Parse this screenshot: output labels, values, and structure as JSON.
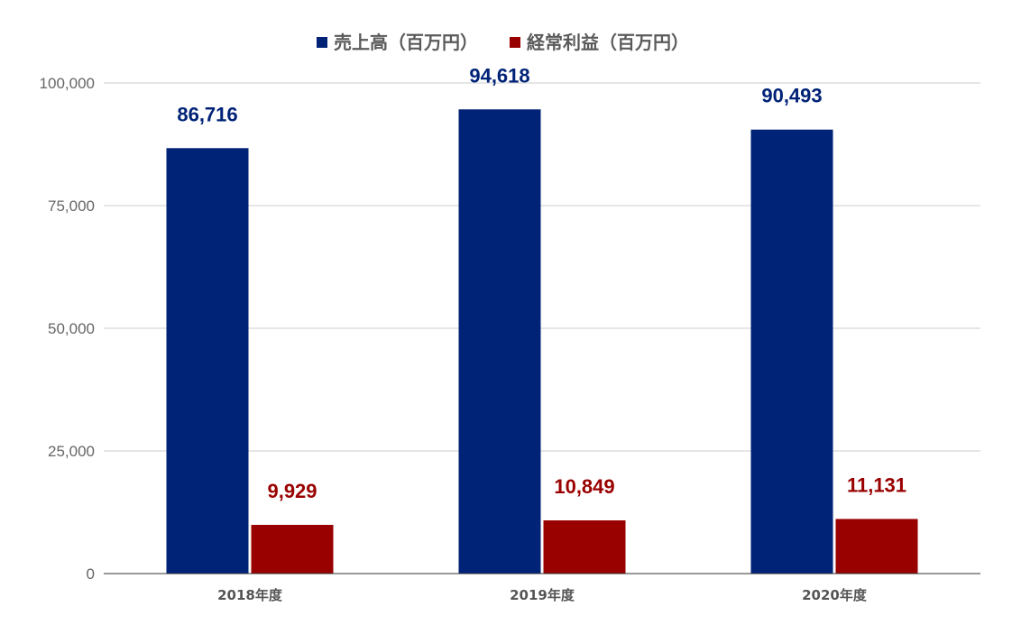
{
  "chart_data": {
    "type": "bar",
    "categories": [
      "2018年度",
      "2019年度",
      "2020年度"
    ],
    "series": [
      {
        "name": "売上高（百万円）",
        "values": [
          86716,
          94618,
          90493
        ],
        "labels": [
          "86,716",
          "94,618",
          "90,493"
        ],
        "color": "#002277"
      },
      {
        "name": "経常利益（百万円）",
        "values": [
          9929,
          10849,
          11131
        ],
        "labels": [
          "9,929",
          "10,849",
          "11,131"
        ],
        "color": "#990000"
      }
    ],
    "ylim": [
      0,
      100000
    ],
    "yticks": [
      0,
      25000,
      50000,
      75000,
      100000
    ],
    "ytick_labels": [
      "0",
      "25,000",
      "50,000",
      "75,000",
      "100,000"
    ],
    "legend_position": "top-center",
    "grid": true
  }
}
